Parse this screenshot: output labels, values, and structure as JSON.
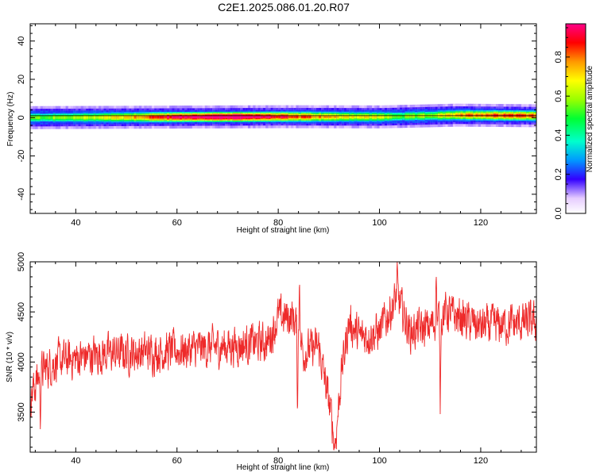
{
  "title": "C2E1.2025.086.01.20.R07",
  "chart_data": [
    {
      "type": "heatmap",
      "xlabel": "Height of straight line (km)",
      "ylabel": "Frequency (Hz)",
      "xlim": [
        31,
        131
      ],
      "ylim": [
        -50,
        49
      ],
      "xticks": [
        40,
        60,
        80,
        100,
        120
      ],
      "yticks": [
        -40,
        -20,
        0,
        20,
        40
      ],
      "band": {
        "center_hz": [
          {
            "x": 31,
            "y": 0.0
          },
          {
            "x": 60,
            "y": 0.3
          },
          {
            "x": 80,
            "y": 0.5
          },
          {
            "x": 100,
            "y": 0.4
          },
          {
            "x": 115,
            "y": 1.3
          },
          {
            "x": 131,
            "y": 1.0
          }
        ],
        "intensity": [
          {
            "x": 31,
            "v": 0.5
          },
          {
            "x": 40,
            "v": 0.55
          },
          {
            "x": 50,
            "v": 0.7
          },
          {
            "x": 58,
            "v": 0.85
          },
          {
            "x": 65,
            "v": 0.95
          },
          {
            "x": 72,
            "v": 0.98
          },
          {
            "x": 78,
            "v": 0.9
          },
          {
            "x": 82,
            "v": 0.8
          },
          {
            "x": 90,
            "v": 0.7
          },
          {
            "x": 100,
            "v": 0.62
          },
          {
            "x": 104,
            "v": 0.5
          },
          {
            "x": 110,
            "v": 0.58
          },
          {
            "x": 118,
            "v": 0.75
          },
          {
            "x": 125,
            "v": 0.82
          },
          {
            "x": 131,
            "v": 0.78
          }
        ]
      }
    },
    {
      "type": "line",
      "xlabel": "Height of straight line (km)",
      "ylabel": "SNR (10 * v/v)",
      "xlim": [
        31,
        131
      ],
      "ylim": [
        3100,
        5000
      ],
      "xticks": [
        40,
        60,
        80,
        100,
        120
      ],
      "yticks": [
        3500,
        4000,
        4500,
        5000
      ],
      "color": "#ee2a2a",
      "trend": [
        {
          "x": 31,
          "y": 3650
        },
        {
          "x": 33,
          "y": 3900
        },
        {
          "x": 36,
          "y": 4000
        },
        {
          "x": 45,
          "y": 4080
        },
        {
          "x": 55,
          "y": 4100
        },
        {
          "x": 62,
          "y": 4120
        },
        {
          "x": 68,
          "y": 4150
        },
        {
          "x": 74,
          "y": 4180
        },
        {
          "x": 78,
          "y": 4200
        },
        {
          "x": 80,
          "y": 4450
        },
        {
          "x": 83,
          "y": 4450
        },
        {
          "x": 85,
          "y": 4100
        },
        {
          "x": 88,
          "y": 4150
        },
        {
          "x": 90,
          "y": 3600
        },
        {
          "x": 91.3,
          "y": 3200
        },
        {
          "x": 92.5,
          "y": 3900
        },
        {
          "x": 94,
          "y": 4400
        },
        {
          "x": 96,
          "y": 4250
        },
        {
          "x": 100,
          "y": 4300
        },
        {
          "x": 103.5,
          "y": 4650
        },
        {
          "x": 106,
          "y": 4300
        },
        {
          "x": 110,
          "y": 4350
        },
        {
          "x": 113,
          "y": 4500
        },
        {
          "x": 120,
          "y": 4350
        },
        {
          "x": 131,
          "y": 4400
        }
      ],
      "spikes": [
        {
          "x": 84.2,
          "y": 4870
        },
        {
          "x": 91.0,
          "y": 3120
        },
        {
          "x": 103.5,
          "y": 5000
        },
        {
          "x": 111.2,
          "y": 4920
        },
        {
          "x": 112.0,
          "y": 3480
        },
        {
          "x": 33.0,
          "y": 3330
        },
        {
          "x": 83.8,
          "y": 3440
        }
      ]
    }
  ],
  "colorbar": {
    "label": "Normalized spectral amplitude",
    "range": [
      0.0,
      0.97
    ],
    "ticks": [
      0.0,
      0.2,
      0.4,
      0.6,
      0.8
    ],
    "tick_labels": [
      "0.0",
      "0.2",
      "0.4",
      "0.6",
      "0.8"
    ]
  }
}
